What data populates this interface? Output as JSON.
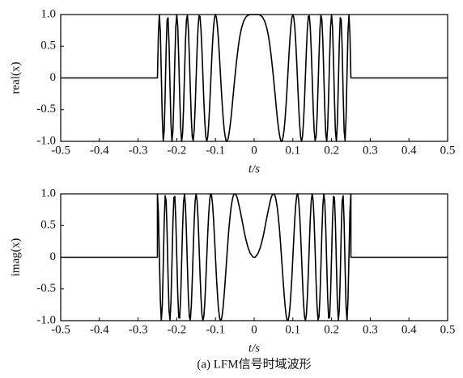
{
  "chart_data": [
    {
      "type": "line",
      "ylabel": "real(x)",
      "xlabel": "t/s",
      "color": "#000000",
      "xlim": [
        -0.5,
        0.5
      ],
      "ylim": [
        -1,
        1
      ],
      "xticks": [
        -0.5,
        -0.4,
        -0.3,
        -0.2,
        -0.1,
        0,
        0.1,
        0.2,
        0.3,
        0.4,
        0.5
      ],
      "yticks": [
        {
          "value": -1,
          "label": "-1.0"
        },
        -0.5,
        0,
        0.5,
        {
          "value": 1,
          "label": "1.0"
        }
      ],
      "x": [
        -0.5,
        -0.25,
        -0.25,
        -0.2475,
        -0.245,
        -0.2425,
        -0.24,
        -0.2375,
        -0.235,
        -0.2325,
        -0.23,
        -0.2275,
        -0.225,
        -0.2225,
        -0.22,
        -0.2175,
        -0.215,
        -0.2125,
        -0.21,
        -0.2075,
        -0.205,
        -0.2025,
        -0.2,
        -0.1975,
        -0.195,
        -0.1925,
        -0.19,
        -0.1875,
        -0.185,
        -0.1825,
        -0.18,
        -0.1775,
        -0.175,
        -0.1725,
        -0.17,
        -0.1675,
        -0.165,
        -0.1625,
        -0.16,
        -0.1575,
        -0.155,
        -0.1525,
        -0.15,
        -0.1475,
        -0.145,
        -0.1425,
        -0.14,
        -0.1375,
        -0.135,
        -0.1325,
        -0.13,
        -0.1275,
        -0.125,
        -0.1225,
        -0.12,
        -0.1175,
        -0.115,
        -0.1125,
        -0.11,
        -0.1075,
        -0.105,
        -0.1025,
        -0.1,
        -0.0975,
        -0.095,
        -0.0925,
        -0.09,
        -0.0875,
        -0.085,
        -0.0825,
        -0.08,
        -0.0775,
        -0.075,
        -0.0725,
        -0.07,
        -0.0675,
        -0.065,
        -0.0625,
        -0.06,
        -0.0575,
        -0.055,
        -0.0525,
        -0.05,
        -0.0475,
        -0.045,
        -0.0425,
        -0.04,
        -0.0375,
        -0.035,
        -0.0325,
        -0.03,
        -0.0275,
        -0.025,
        -0.0225,
        -0.02,
        -0.0175,
        -0.015,
        -0.0125,
        -0.01,
        -0.0075,
        -0.005,
        -0.0025,
        0,
        0.0025,
        0.005,
        0.0075,
        0.01,
        0.0125,
        0.015,
        0.0175,
        0.02,
        0.0225,
        0.025,
        0.0275,
        0.03,
        0.0325,
        0.035,
        0.0375,
        0.04,
        0.0425,
        0.045,
        0.0475,
        0.05,
        0.0525,
        0.055,
        0.0575,
        0.06,
        0.0625,
        0.065,
        0.0675,
        0.07,
        0.0725,
        0.075,
        0.0775,
        0.08,
        0.0825,
        0.085,
        0.0875,
        0.09,
        0.0925,
        0.095,
        0.0975,
        0.1,
        0.1025,
        0.105,
        0.1075,
        0.11,
        0.1125,
        0.115,
        0.1175,
        0.12,
        0.1225,
        0.125,
        0.1275,
        0.13,
        0.1325,
        0.135,
        0.1375,
        0.14,
        0.1425,
        0.145,
        0.1475,
        0.15,
        0.1525,
        0.155,
        0.1575,
        0.16,
        0.1625,
        0.165,
        0.1675,
        0.17,
        0.1725,
        0.175,
        0.1775,
        0.18,
        0.1825,
        0.185,
        0.1875,
        0.19,
        0.1925,
        0.195,
        0.1975,
        0.2,
        0.2025,
        0.205,
        0.2075,
        0.21,
        0.2125,
        0.215,
        0.2175,
        0.22,
        0.2225,
        0.225,
        0.2275,
        0.23,
        0.2325,
        0.235,
        0.2375,
        0.24,
        0.2425,
        0.245,
        0.2475,
        0.25,
        0.25,
        0.5
      ],
      "values": [
        0,
        0,
        0,
        0.7,
        1,
        0.73,
        0.06,
        -0.63,
        -0.99,
        -0.83,
        -0.25,
        0.45,
        0.92,
        0.95,
        0.54,
        -0.12,
        -0.72,
        -1,
        -0.84,
        -0.34,
        0.29,
        0.81,
        1,
        0.81,
        0.32,
        -0.28,
        -0.77,
        -1,
        -0.88,
        -0.49,
        0.06,
        0.58,
        0.92,
        0.99,
        0.77,
        0.34,
        -0.17,
        -0.63,
        -0.93,
        -0.99,
        -0.82,
        -0.46,
        0,
        0.45,
        0.8,
        0.98,
        0.97,
        0.77,
        0.44,
        0.04,
        -0.37,
        -0.7,
        -0.92,
        -1,
        -0.93,
        -0.73,
        -0.44,
        -0.1,
        0.25,
        0.56,
        0.8,
        0.95,
        1,
        0.95,
        0.82,
        0.62,
        0.37,
        0.1,
        -0.17,
        -0.42,
        -0.64,
        -0.81,
        -0.92,
        -0.99,
        -1,
        -0.96,
        -0.88,
        -0.77,
        -0.64,
        -0.49,
        -0.32,
        -0.16,
        0,
        0.15,
        0.29,
        0.42,
        0.54,
        0.64,
        0.72,
        0.79,
        0.84,
        0.89,
        0.92,
        0.95,
        0.97,
        0.98,
        0.99,
        1,
        1,
        1,
        1,
        1,
        1,
        1,
        1,
        1,
        1,
        1,
        0.99,
        0.98,
        0.97,
        0.95,
        0.92,
        0.89,
        0.84,
        0.79,
        0.72,
        0.64,
        0.54,
        0.42,
        0.29,
        0.15,
        0,
        -0.16,
        -0.32,
        -0.49,
        -0.64,
        -0.77,
        -0.88,
        -0.96,
        -1,
        -0.99,
        -0.92,
        -0.81,
        -0.64,
        -0.42,
        -0.17,
        0.1,
        0.37,
        0.62,
        0.82,
        0.95,
        1,
        0.95,
        0.8,
        0.56,
        0.25,
        -0.1,
        -0.44,
        -0.73,
        -0.93,
        -1,
        -0.92,
        -0.7,
        -0.37,
        0.04,
        0.44,
        0.77,
        0.97,
        0.98,
        0.8,
        0.45,
        0,
        -0.46,
        -0.82,
        -0.99,
        -0.93,
        -0.63,
        -0.17,
        0.34,
        0.77,
        0.99,
        0.92,
        0.58,
        0.06,
        -0.49,
        -0.88,
        -1,
        -0.77,
        -0.28,
        0.32,
        0.81,
        1,
        0.81,
        0.29,
        -0.34,
        -0.84,
        -1,
        -0.72,
        -0.12,
        0.54,
        0.95,
        0.92,
        0.45,
        -0.25,
        -0.83,
        -0.99,
        -0.63,
        0.06,
        0.73,
        1,
        0.7,
        0,
        0,
        0
      ]
    },
    {
      "type": "line",
      "ylabel": "imag(x)",
      "xlabel": "t/s",
      "color": "#000000",
      "xlim": [
        -0.5,
        0.5
      ],
      "ylim": [
        -1,
        1
      ],
      "xticks": [
        -0.5,
        -0.4,
        -0.3,
        -0.2,
        -0.1,
        0,
        0.1,
        0.2,
        0.3,
        0.4,
        0.5
      ],
      "yticks": [
        {
          "value": -1,
          "label": "-1.0"
        },
        -0.5,
        0,
        0.5,
        {
          "value": 1,
          "label": "1.0"
        }
      ],
      "x": [
        -0.5,
        -0.25,
        -0.25,
        -0.2475,
        -0.245,
        -0.2425,
        -0.24,
        -0.2375,
        -0.235,
        -0.2325,
        -0.23,
        -0.2275,
        -0.225,
        -0.2225,
        -0.22,
        -0.2175,
        -0.215,
        -0.2125,
        -0.21,
        -0.2075,
        -0.205,
        -0.2025,
        -0.2,
        -0.1975,
        -0.195,
        -0.1925,
        -0.19,
        -0.1875,
        -0.185,
        -0.1825,
        -0.18,
        -0.1775,
        -0.175,
        -0.1725,
        -0.17,
        -0.1675,
        -0.165,
        -0.1625,
        -0.16,
        -0.1575,
        -0.155,
        -0.1525,
        -0.15,
        -0.1475,
        -0.145,
        -0.1425,
        -0.14,
        -0.1375,
        -0.135,
        -0.1325,
        -0.13,
        -0.1275,
        -0.125,
        -0.1225,
        -0.12,
        -0.1175,
        -0.115,
        -0.1125,
        -0.11,
        -0.1075,
        -0.105,
        -0.1025,
        -0.1,
        -0.0975,
        -0.095,
        -0.0925,
        -0.09,
        -0.0875,
        -0.085,
        -0.0825,
        -0.08,
        -0.0775,
        -0.075,
        -0.0725,
        -0.07,
        -0.0675,
        -0.065,
        -0.0625,
        -0.06,
        -0.0575,
        -0.055,
        -0.0525,
        -0.05,
        -0.0475,
        -0.045,
        -0.0425,
        -0.04,
        -0.0375,
        -0.035,
        -0.0325,
        -0.03,
        -0.0275,
        -0.025,
        -0.0225,
        -0.02,
        -0.0175,
        -0.015,
        -0.0125,
        -0.01,
        -0.0075,
        -0.005,
        -0.0025,
        0,
        0.0025,
        0.005,
        0.0075,
        0.01,
        0.0125,
        0.015,
        0.0175,
        0.02,
        0.0225,
        0.025,
        0.0275,
        0.03,
        0.0325,
        0.035,
        0.0375,
        0.04,
        0.0425,
        0.045,
        0.0475,
        0.05,
        0.0525,
        0.055,
        0.0575,
        0.06,
        0.0625,
        0.065,
        0.0675,
        0.07,
        0.0725,
        0.075,
        0.0775,
        0.08,
        0.0825,
        0.085,
        0.0875,
        0.09,
        0.0925,
        0.095,
        0.0975,
        0.1,
        0.1025,
        0.105,
        0.1075,
        0.11,
        0.1125,
        0.115,
        0.1175,
        0.12,
        0.1225,
        0.125,
        0.1275,
        0.13,
        0.1325,
        0.135,
        0.1375,
        0.14,
        0.1425,
        0.145,
        0.1475,
        0.15,
        0.1525,
        0.155,
        0.1575,
        0.16,
        0.1625,
        0.165,
        0.1675,
        0.17,
        0.1725,
        0.175,
        0.1775,
        0.18,
        0.1825,
        0.185,
        0.1875,
        0.19,
        0.1925,
        0.195,
        0.1975,
        0.2,
        0.2025,
        0.205,
        0.2075,
        0.21,
        0.2125,
        0.215,
        0.2175,
        0.22,
        0.2225,
        0.225,
        0.2275,
        0.23,
        0.2325,
        0.235,
        0.2375,
        0.24,
        0.2425,
        0.245,
        0.2475,
        0.25,
        0.25,
        0.5
      ],
      "values": [
        0,
        0,
        1,
        0.71,
        0.02,
        -0.68,
        -1,
        -0.77,
        -0.14,
        0.56,
        0.97,
        0.89,
        0.38,
        -0.31,
        -0.84,
        -0.99,
        -0.7,
        -0.1,
        0.54,
        0.94,
        0.96,
        0.59,
        0,
        -0.58,
        -0.95,
        -0.96,
        -0.64,
        -0.1,
        0.47,
        0.87,
        1,
        0.81,
        0.38,
        -0.15,
        -0.64,
        -0.94,
        -0.99,
        -0.77,
        -0.37,
        0.12,
        0.57,
        0.89,
        1,
        0.89,
        0.6,
        0.19,
        -0.25,
        -0.63,
        -0.9,
        -1,
        -0.93,
        -0.71,
        -0.38,
        0,
        0.37,
        0.68,
        0.9,
        1,
        0.97,
        0.83,
        0.6,
        0.31,
        0,
        -0.31,
        -0.57,
        -0.79,
        -0.93,
        -1,
        -0.99,
        -0.91,
        -0.77,
        -0.59,
        -0.38,
        -0.16,
        0.06,
        0.28,
        0.47,
        0.63,
        0.77,
        0.87,
        0.95,
        0.99,
        1,
        0.99,
        0.96,
        0.91,
        0.84,
        0.77,
        0.7,
        0.62,
        0.54,
        0.46,
        0.38,
        0.31,
        0.25,
        0.19,
        0.14,
        0.1,
        0.06,
        0.04,
        0.02,
        0,
        0,
        0,
        0.02,
        0.04,
        0.06,
        0.1,
        0.14,
        0.19,
        0.25,
        0.31,
        0.38,
        0.46,
        0.54,
        0.62,
        0.7,
        0.77,
        0.84,
        0.91,
        0.96,
        0.99,
        1,
        0.99,
        0.95,
        0.87,
        0.77,
        0.63,
        0.47,
        0.28,
        0.06,
        -0.16,
        -0.38,
        -0.59,
        -0.77,
        -0.91,
        -0.99,
        -1,
        -0.93,
        -0.79,
        -0.57,
        -0.31,
        0,
        0.31,
        0.6,
        0.83,
        0.97,
        1,
        0.9,
        0.68,
        0.37,
        0,
        -0.38,
        -0.71,
        -0.93,
        -1,
        -0.9,
        -0.63,
        -0.25,
        0.19,
        0.6,
        0.89,
        1,
        0.89,
        0.57,
        0.12,
        -0.37,
        -0.77,
        -0.99,
        -0.94,
        -0.64,
        -0.15,
        0.38,
        0.81,
        1,
        0.87,
        0.47,
        -0.1,
        -0.64,
        -0.96,
        -0.95,
        -0.58,
        0,
        0.59,
        0.96,
        0.94,
        0.54,
        -0.1,
        -0.7,
        -0.99,
        -0.84,
        -0.31,
        0.38,
        0.89,
        0.97,
        0.56,
        -0.14,
        -0.77,
        -1,
        -0.68,
        0.02,
        0.71,
        1,
        0,
        0
      ]
    }
  ],
  "caption": "(a) LFM信号时域波形"
}
